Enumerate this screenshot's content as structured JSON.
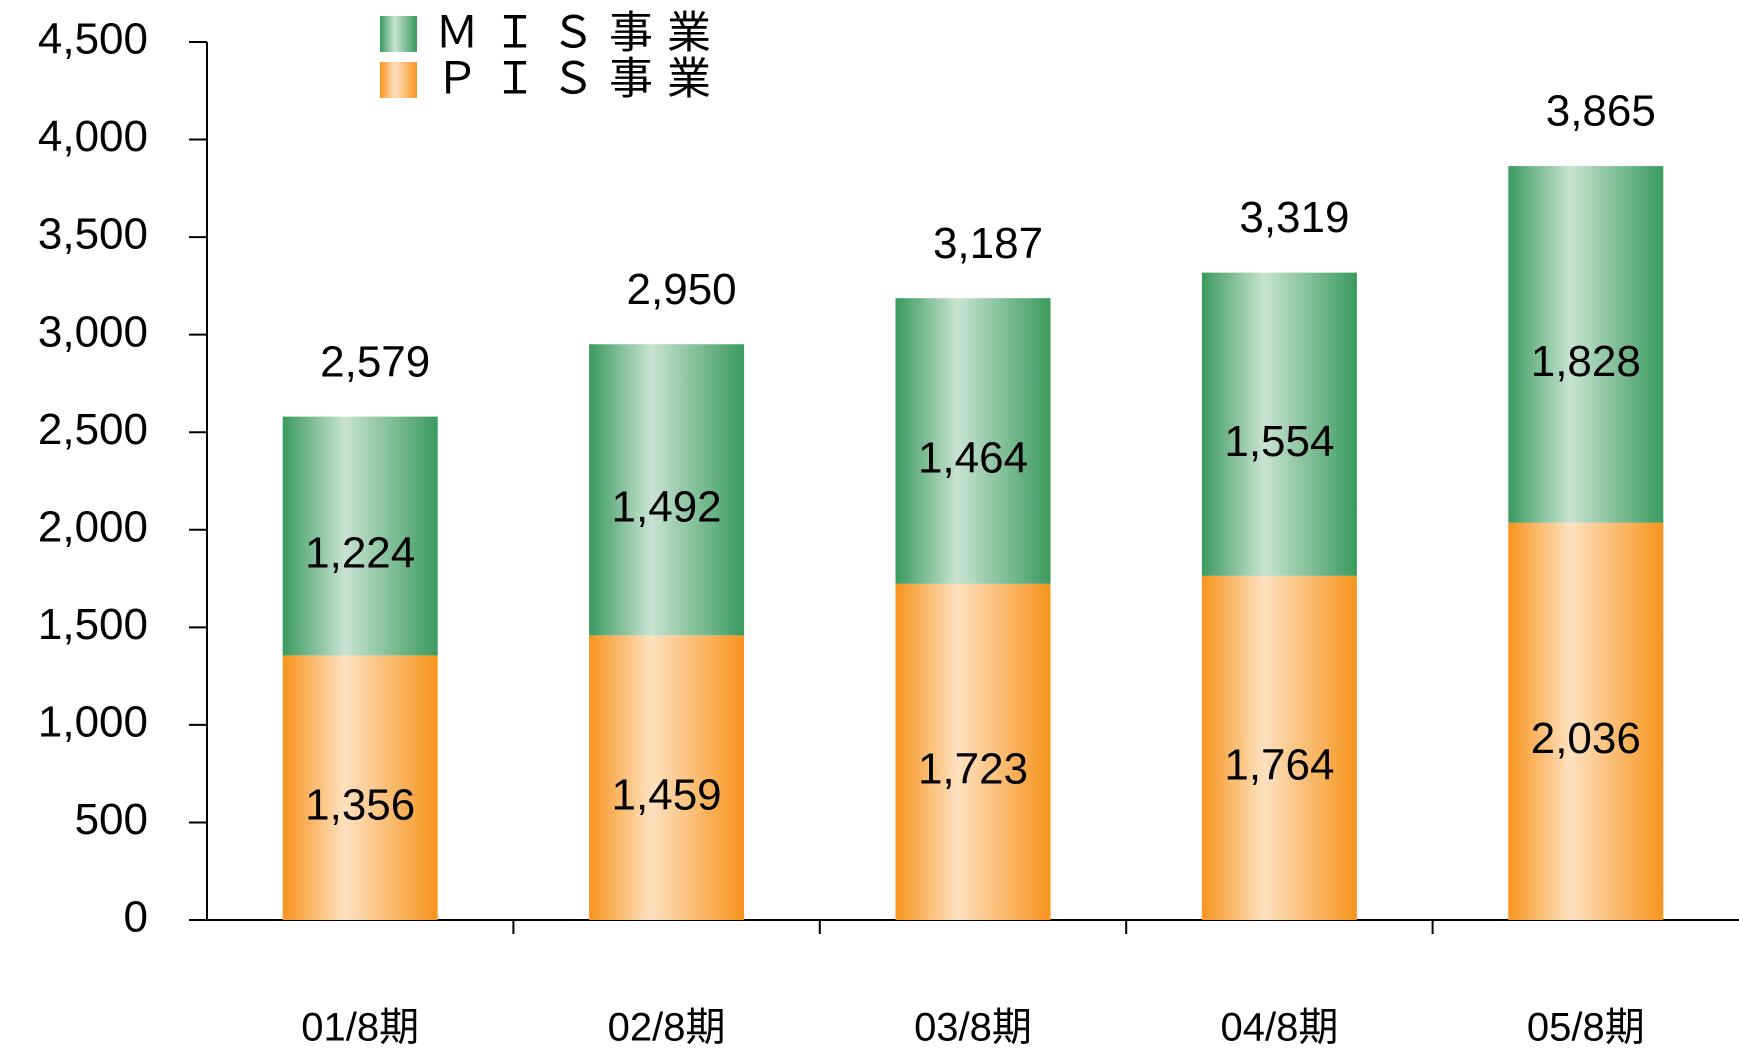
{
  "chart_data": {
    "type": "stacked_bar",
    "categories": [
      "01/8期",
      "02/8期",
      "03/8期",
      "04/8期",
      "05/8期"
    ],
    "series": [
      {
        "name": "ＰＩＳ事業",
        "color": "#f7941d",
        "values": [
          1356,
          1459,
          1723,
          1764,
          2036
        ],
        "value_labels": [
          "1,356",
          "1,459",
          "1,723",
          "1,764",
          "2,036"
        ]
      },
      {
        "name": "ＭＩＳ事業",
        "color": "#3a9a5e",
        "values": [
          1224,
          1492,
          1464,
          1554,
          1828
        ],
        "value_labels": [
          "1,224",
          "1,492",
          "1,464",
          "1,554",
          "1,828"
        ]
      }
    ],
    "totals": [
      2579,
      2950,
      3187,
      3319,
      3865
    ],
    "total_labels": [
      "2,579",
      "2,950",
      "3,187",
      "3,319",
      "3,865"
    ],
    "ylim": [
      0,
      4500
    ],
    "yticks": [
      0,
      500,
      {
        "value": 1000,
        "label": "1,000"
      },
      {
        "value": 1500,
        "label": "1,500"
      },
      {
        "value": 2000,
        "label": "2,000"
      },
      {
        "value": 2500,
        "label": "2,500"
      },
      {
        "value": 3000,
        "label": "3,000"
      },
      {
        "value": 3500,
        "label": "3,500"
      },
      {
        "value": 4000,
        "label": "4,000"
      },
      {
        "value": 4500,
        "label": "4,500"
      }
    ]
  }
}
